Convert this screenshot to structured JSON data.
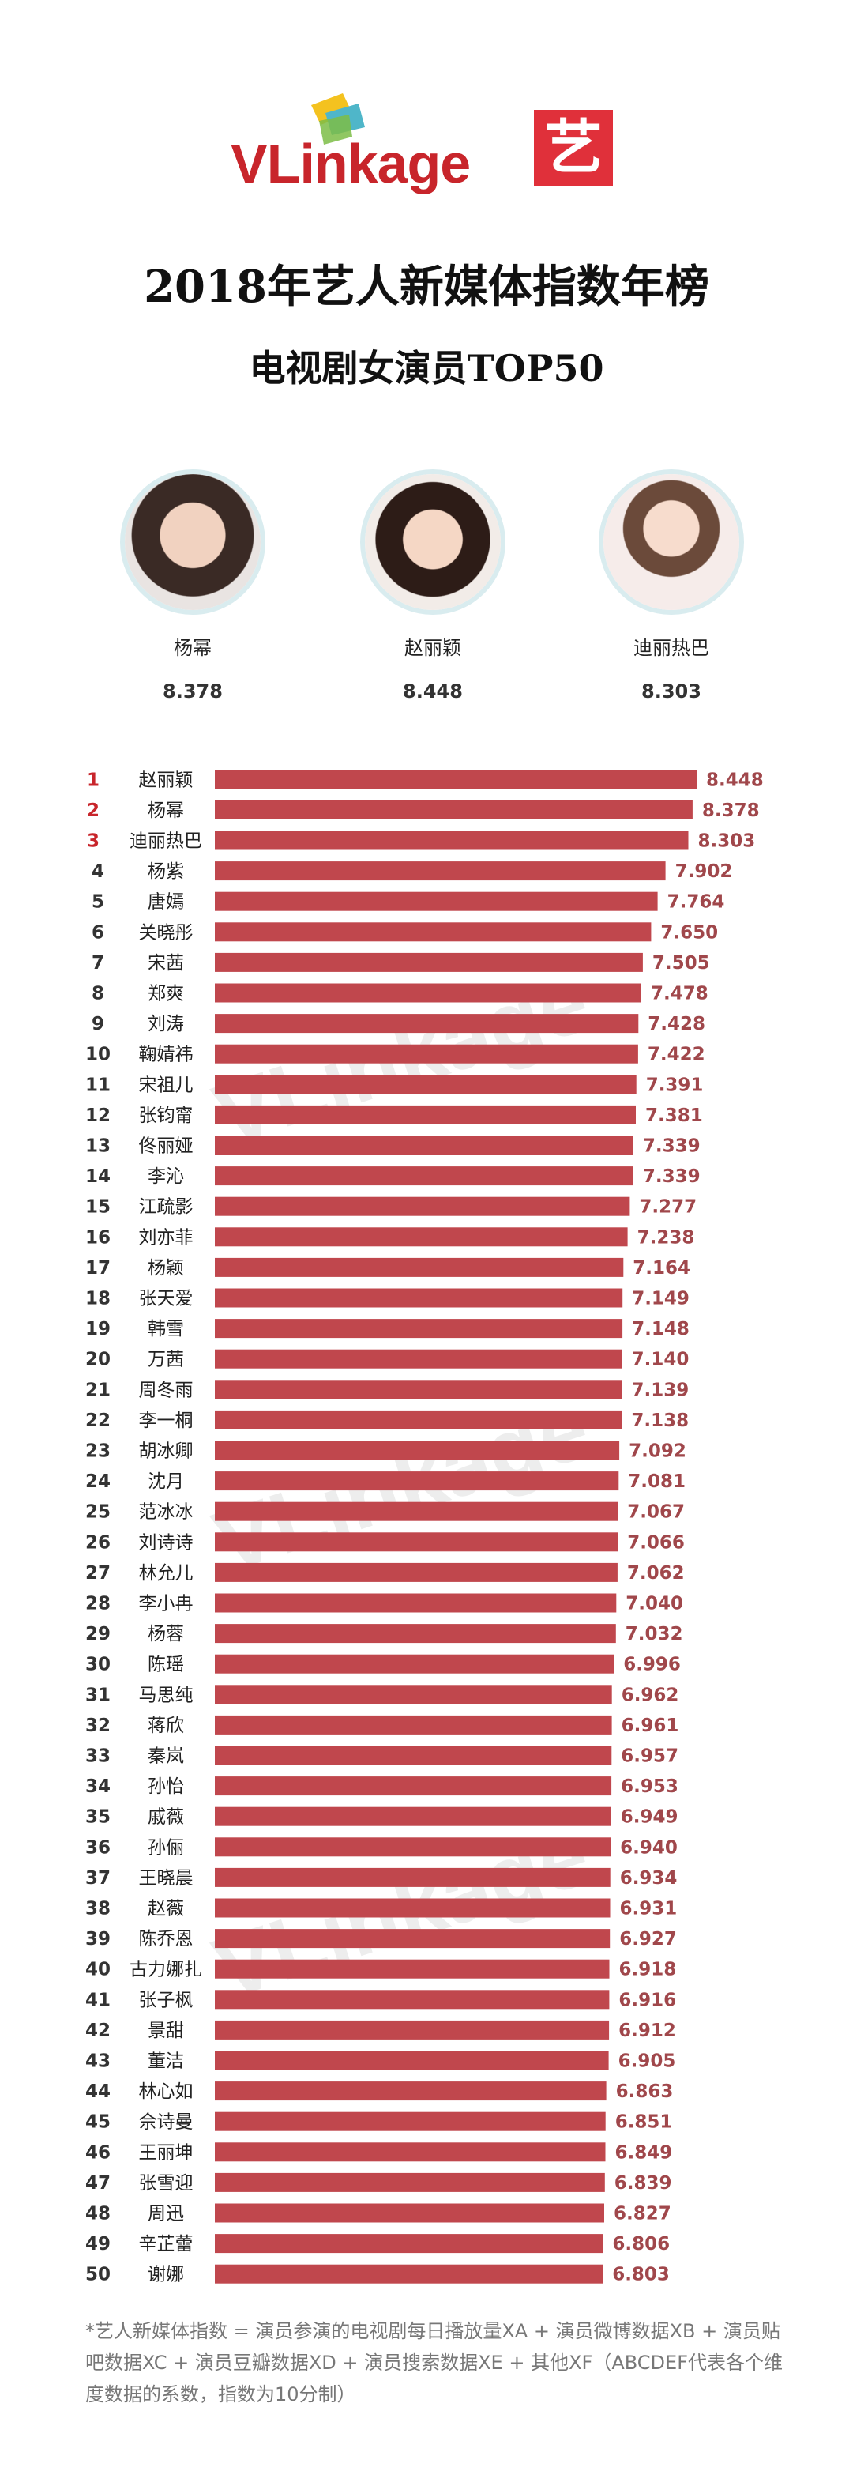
{
  "header": {
    "logo_text": "VLinkage",
    "badge_char": "艺",
    "title": "2018年艺人新媒体指数年榜",
    "subtitle": "电视剧女演员TOP50"
  },
  "podium": [
    {
      "name": "杨幂",
      "score": "8.378"
    },
    {
      "name": "赵丽颖",
      "score": "8.448"
    },
    {
      "name": "迪丽热巴",
      "score": "8.303"
    }
  ],
  "chart_data": {
    "type": "bar",
    "orientation": "horizontal",
    "bar_color": "#c0474d",
    "rank_color": "#c8252b",
    "value_color": "#a0474b",
    "watermark": "VLinkage",
    "xlim": [
      0,
      8.448
    ],
    "categories": [
      "赵丽颖",
      "杨幂",
      "迪丽热巴",
      "杨紫",
      "唐嫣",
      "关晓彤",
      "宋茜",
      "郑爽",
      "刘涛",
      "鞠婧祎",
      "宋祖儿",
      "张钧甯",
      "佟丽娅",
      "李沁",
      "江疏影",
      "刘亦菲",
      "杨颖",
      "张天爱",
      "韩雪",
      "万茜",
      "周冬雨",
      "李一桐",
      "胡冰卿",
      "沈月",
      "范冰冰",
      "刘诗诗",
      "林允儿",
      "李小冉",
      "杨蓉",
      "陈瑶",
      "马思纯",
      "蒋欣",
      "秦岚",
      "孙怡",
      "戚薇",
      "孙俪",
      "王晓晨",
      "赵薇",
      "陈乔恩",
      "古力娜扎",
      "张子枫",
      "景甜",
      "董洁",
      "林心如",
      "佘诗曼",
      "王丽坤",
      "张雪迎",
      "周迅",
      "辛芷蕾",
      "谢娜"
    ],
    "ranks": [
      "1",
      "2",
      "3",
      "4",
      "5",
      "6",
      "7",
      "8",
      "9",
      "10",
      "11",
      "12",
      "13",
      "14",
      "15",
      "16",
      "17",
      "18",
      "19",
      "20",
      "21",
      "22",
      "23",
      "24",
      "25",
      "26",
      "27",
      "28",
      "29",
      "30",
      "31",
      "32",
      "33",
      "34",
      "35",
      "36",
      "37",
      "38",
      "39",
      "40",
      "41",
      "42",
      "43",
      "44",
      "45",
      "46",
      "47",
      "48",
      "49",
      "50"
    ],
    "values": [
      8.448,
      8.378,
      8.303,
      7.902,
      7.764,
      7.65,
      7.505,
      7.478,
      7.428,
      7.422,
      7.391,
      7.381,
      7.339,
      7.339,
      7.277,
      7.238,
      7.164,
      7.149,
      7.148,
      7.14,
      7.139,
      7.138,
      7.092,
      7.081,
      7.067,
      7.066,
      7.062,
      7.04,
      7.032,
      6.996,
      6.962,
      6.961,
      6.957,
      6.953,
      6.949,
      6.94,
      6.934,
      6.931,
      6.927,
      6.918,
      6.916,
      6.912,
      6.905,
      6.863,
      6.851,
      6.849,
      6.839,
      6.827,
      6.806,
      6.803
    ],
    "labels": [
      "8.448",
      "8.378",
      "8.303",
      "7.902",
      "7.764",
      "7.650",
      "7.505",
      "7.478",
      "7.428",
      "7.422",
      "7.391",
      "7.381",
      "7.339",
      "7.339",
      "7.277",
      "7.238",
      "7.164",
      "7.149",
      "7.148",
      "7.140",
      "7.139",
      "7.138",
      "7.092",
      "7.081",
      "7.067",
      "7.066",
      "7.062",
      "7.040",
      "7.032",
      "6.996",
      "6.962",
      "6.961",
      "6.957",
      "6.953",
      "6.949",
      "6.940",
      "6.934",
      "6.931",
      "6.927",
      "6.918",
      "6.916",
      "6.912",
      "6.905",
      "6.863",
      "6.851",
      "6.849",
      "6.839",
      "6.827",
      "6.806",
      "6.803"
    ]
  },
  "footnote": "*艺人新媒体指数 = 演员参演的电视剧每日播放量XA + 演员微博数据XB + 演员贴吧数据XC + 演员豆瓣数据XD + 演员搜索数据XE + 其他XF（ABCDEF代表各个维度数据的系数，指数为10分制）"
}
